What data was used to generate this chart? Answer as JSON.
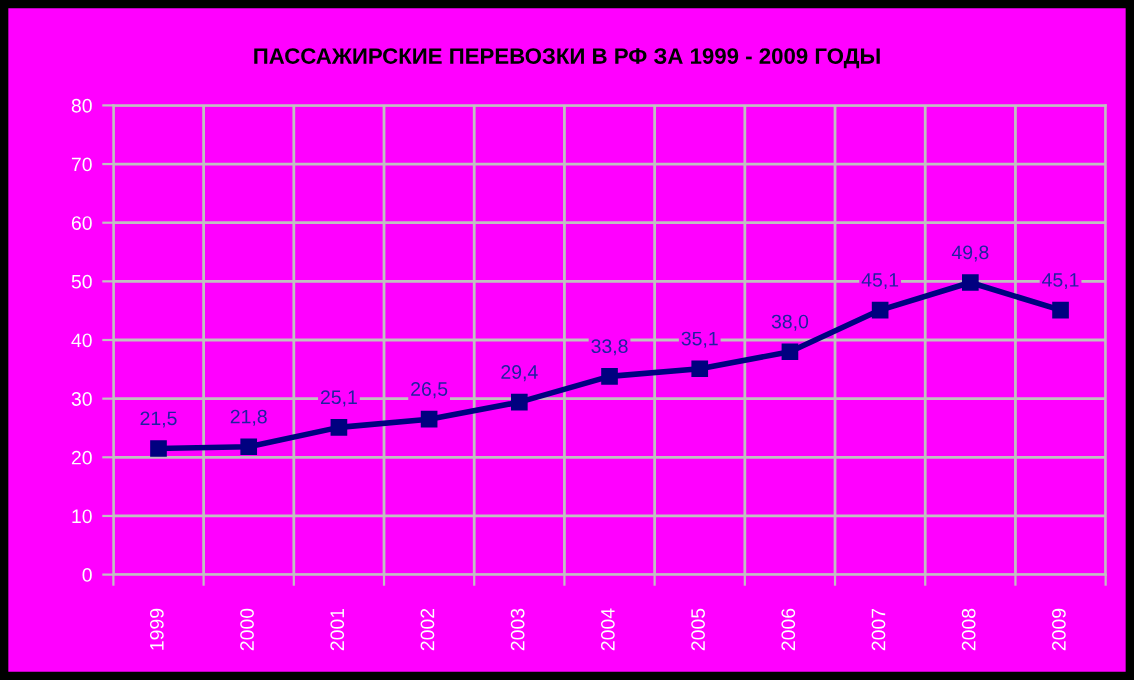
{
  "chart_data": {
    "type": "line",
    "title": "ПАССАЖИРСКИЕ ПЕРЕВОЗКИ В РФ ЗА 1999 - 2009 ГОДЫ",
    "categories": [
      "1999",
      "2000",
      "2001",
      "2002",
      "2003",
      "2004",
      "2005",
      "2006",
      "2007",
      "2008",
      "2009"
    ],
    "series": [
      {
        "color": "#000080",
        "values": [
          21.5,
          21.8,
          25.1,
          26.5,
          29.4,
          33.8,
          35.1,
          38.0,
          45.1,
          49.8,
          45.1
        ],
        "value_labels": [
          "21,5",
          "21,8",
          "25,1",
          "26,5",
          "29,4",
          "33,8",
          "35,1",
          "38,0",
          "45,1",
          "49,8",
          "45,1"
        ]
      }
    ],
    "ylim": [
      0,
      80
    ],
    "yticks": [
      0,
      10,
      20,
      30,
      40,
      50,
      60,
      70,
      80
    ],
    "grid": true,
    "marker": "square",
    "line_style": "solid"
  }
}
